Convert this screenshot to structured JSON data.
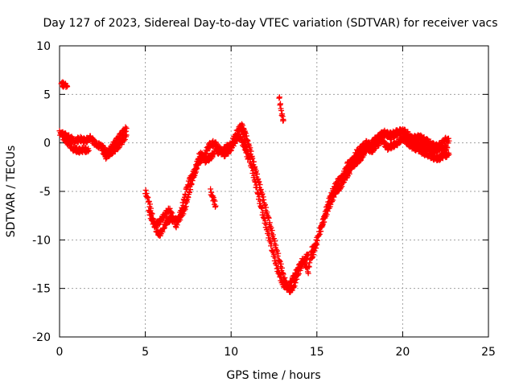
{
  "chart_data": {
    "type": "scatter",
    "title": "Day 127 of 2023, Sidereal Day-to-day VTEC variation (SDTVAR) for receiver vacs",
    "xlabel": "GPS time / hours",
    "ylabel": "SDTVAR / TECUs",
    "xlim": [
      0,
      25
    ],
    "ylim": [
      -20,
      10
    ],
    "xticks": [
      0,
      5,
      10,
      15,
      20,
      25
    ],
    "yticks": [
      -20,
      -15,
      -10,
      -5,
      0,
      5,
      10
    ],
    "grid": true,
    "marker": "+",
    "series": [
      {
        "name": "SDTVAR",
        "color": "#ff0000",
        "segments": [
          [
            [
              0.1,
              6.1
            ],
            [
              0.35,
              5.9
            ],
            [
              0.45,
              5.8
            ]
          ],
          [
            [
              0.0,
              1.0
            ],
            [
              0.3,
              0.8
            ],
            [
              0.6,
              0.5
            ],
            [
              0.9,
              0.2
            ],
            [
              1.2,
              0.4
            ],
            [
              1.5,
              0.2
            ],
            [
              1.8,
              0.5
            ],
            [
              2.0,
              0.1
            ],
            [
              2.2,
              -0.3
            ],
            [
              2.4,
              -0.2
            ],
            [
              2.6,
              -0.7
            ],
            [
              2.8,
              -1.0
            ],
            [
              3.0,
              -0.5
            ],
            [
              3.3,
              0.2
            ],
            [
              3.6,
              0.9
            ],
            [
              3.9,
              1.5
            ]
          ],
          [
            [
              0.2,
              0.6
            ],
            [
              0.5,
              0.0
            ],
            [
              0.8,
              -0.6
            ],
            [
              1.1,
              -0.8
            ],
            [
              1.4,
              -0.7
            ],
            [
              1.7,
              -0.8
            ]
          ],
          [
            [
              2.4,
              -0.4
            ],
            [
              2.7,
              -1.4
            ],
            [
              3.0,
              -1.0
            ],
            [
              3.3,
              -0.6
            ],
            [
              3.6,
              0.0
            ],
            [
              3.9,
              0.8
            ]
          ],
          [
            [
              5.0,
              -5.0
            ],
            [
              5.2,
              -6.0
            ],
            [
              5.4,
              -7.5
            ],
            [
              5.6,
              -8.8
            ],
            [
              5.8,
              -9.5
            ],
            [
              6.0,
              -9.0
            ],
            [
              6.2,
              -8.2
            ],
            [
              6.5,
              -7.8
            ],
            [
              6.8,
              -8.0
            ],
            [
              7.0,
              -7.8
            ],
            [
              7.3,
              -6.8
            ],
            [
              7.5,
              -5.5
            ],
            [
              7.7,
              -4.0
            ],
            [
              7.9,
              -3.0
            ],
            [
              8.1,
              -2.0
            ],
            [
              8.4,
              -1.5
            ],
            [
              8.7,
              -0.3
            ],
            [
              9.0,
              0.0
            ],
            [
              9.3,
              -0.5
            ],
            [
              9.6,
              -1.2
            ],
            [
              9.9,
              -0.8
            ],
            [
              10.2,
              0.0
            ],
            [
              10.4,
              0.7
            ],
            [
              10.6,
              0.3
            ],
            [
              10.8,
              -0.5
            ],
            [
              11.0,
              -1.6
            ]
          ],
          [
            [
              5.2,
              -7.0
            ],
            [
              5.5,
              -8.5
            ],
            [
              5.8,
              -8.2
            ],
            [
              6.1,
              -7.5
            ],
            [
              6.4,
              -6.8
            ],
            [
              6.8,
              -8.5
            ],
            [
              7.1,
              -7.0
            ],
            [
              7.4,
              -4.8
            ],
            [
              7.6,
              -3.8
            ],
            [
              7.9,
              -2.8
            ],
            [
              8.2,
              -1.0
            ],
            [
              8.5,
              -1.8
            ],
            [
              8.8,
              -1.5
            ],
            [
              9.1,
              -0.8
            ],
            [
              9.4,
              -1.0
            ],
            [
              9.7,
              -0.5
            ],
            [
              10.0,
              -0.2
            ],
            [
              10.3,
              1.0
            ],
            [
              10.6,
              1.8
            ],
            [
              10.8,
              1.2
            ]
          ],
          [
            [
              8.8,
              -5.0
            ],
            [
              9.0,
              -6.0
            ],
            [
              9.1,
              -6.5
            ]
          ],
          [
            [
              10.8,
              1.0
            ],
            [
              11.0,
              0.0
            ],
            [
              11.3,
              -2.0
            ],
            [
              11.6,
              -4.0
            ],
            [
              11.9,
              -6.0
            ],
            [
              12.2,
              -8.0
            ],
            [
              12.5,
              -10.0
            ],
            [
              12.8,
              -12.0
            ],
            [
              13.1,
              -14.0
            ],
            [
              13.4,
              -15.2
            ],
            [
              13.6,
              -15.0
            ],
            [
              13.8,
              -14.0
            ],
            [
              14.0,
              -13.0
            ],
            [
              14.3,
              -12.0
            ],
            [
              14.5,
              -11.5
            ]
          ],
          [
            [
              10.6,
              1.5
            ],
            [
              10.9,
              -0.5
            ],
            [
              11.2,
              -2.5
            ],
            [
              11.5,
              -4.8
            ],
            [
              11.8,
              -7.0
            ],
            [
              12.1,
              -9.0
            ],
            [
              12.4,
              -11.0
            ],
            [
              12.7,
              -13.0
            ],
            [
              13.0,
              -14.5
            ],
            [
              13.3,
              -15.0
            ],
            [
              13.6,
              -14.0
            ],
            [
              13.9,
              -13.0
            ],
            [
              14.2,
              -12.0
            ],
            [
              14.5,
              -13.2
            ],
            [
              14.7,
              -11.0
            ],
            [
              15.0,
              -10.5
            ]
          ],
          [
            [
              12.8,
              4.8
            ],
            [
              12.9,
              3.5
            ],
            [
              13.0,
              2.5
            ],
            [
              13.05,
              2.3
            ]
          ],
          [
            [
              14.7,
              -12.0
            ],
            [
              15.0,
              -10.0
            ],
            [
              15.3,
              -8.5
            ],
            [
              15.6,
              -6.5
            ],
            [
              15.9,
              -5.0
            ],
            [
              16.2,
              -4.0
            ],
            [
              16.5,
              -3.5
            ],
            [
              16.8,
              -2.2
            ],
            [
              17.1,
              -1.8
            ],
            [
              17.4,
              -1.2
            ],
            [
              17.7,
              -0.8
            ],
            [
              18.0,
              -0.6
            ],
            [
              18.3,
              0.2
            ],
            [
              18.6,
              0.6
            ],
            [
              18.9,
              0.9
            ],
            [
              19.2,
              0.8
            ],
            [
              19.5,
              1.0
            ],
            [
              19.8,
              1.2
            ],
            [
              20.1,
              0.8
            ],
            [
              20.4,
              0.4
            ],
            [
              20.7,
              0.5
            ],
            [
              21.0,
              0.6
            ],
            [
              21.3,
              0.3
            ],
            [
              21.6,
              0.0
            ],
            [
              21.9,
              -0.4
            ],
            [
              22.2,
              -0.2
            ],
            [
              22.5,
              0.3
            ],
            [
              22.7,
              0.2
            ]
          ],
          [
            [
              15.2,
              -9.0
            ],
            [
              15.5,
              -7.5
            ],
            [
              15.8,
              -6.2
            ],
            [
              16.1,
              -5.0
            ],
            [
              16.4,
              -4.5
            ],
            [
              16.7,
              -3.0
            ],
            [
              17.0,
              -2.5
            ],
            [
              17.3,
              -2.0
            ],
            [
              17.6,
              -1.5
            ],
            [
              17.9,
              -0.5
            ],
            [
              18.2,
              -0.8
            ],
            [
              18.5,
              -0.2
            ],
            [
              18.8,
              0.3
            ],
            [
              19.1,
              -0.5
            ],
            [
              19.4,
              -0.3
            ],
            [
              19.7,
              0.0
            ],
            [
              20.0,
              0.5
            ],
            [
              20.3,
              0.0
            ],
            [
              20.6,
              -0.5
            ],
            [
              20.9,
              -0.6
            ],
            [
              21.2,
              -1.0
            ],
            [
              21.5,
              -1.2
            ],
            [
              21.8,
              -1.5
            ],
            [
              22.1,
              -1.6
            ],
            [
              22.4,
              -1.3
            ],
            [
              22.7,
              -1.2
            ]
          ],
          [
            [
              16.5,
              -4.0
            ],
            [
              16.9,
              -3.0
            ],
            [
              17.3,
              -1.0
            ],
            [
              17.6,
              -0.5
            ],
            [
              17.9,
              0.0
            ],
            [
              18.3,
              -0.5
            ],
            [
              18.7,
              0.8
            ],
            [
              19.0,
              1.1
            ],
            [
              19.3,
              0.6
            ],
            [
              19.6,
              0.9
            ],
            [
              20.0,
              1.3
            ],
            [
              20.3,
              0.9
            ],
            [
              20.6,
              0.2
            ],
            [
              21.0,
              -0.1
            ],
            [
              21.4,
              -0.5
            ],
            [
              21.8,
              -0.8
            ],
            [
              22.2,
              -0.6
            ],
            [
              22.6,
              -0.5
            ]
          ]
        ]
      }
    ]
  }
}
